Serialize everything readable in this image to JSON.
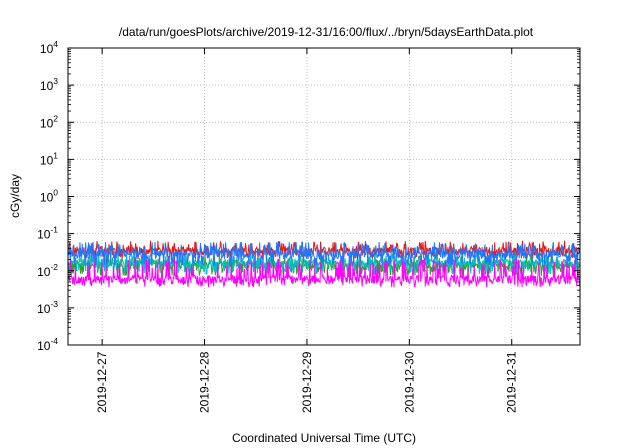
{
  "chart_data": {
    "type": "line",
    "title": "/data/run/goesPlots/archive/2019-12-31/16:00/flux/../bryn/5daysEarthData.plot",
    "xlabel": "Coordinated Universal Time (UTC)",
    "ylabel": "cGy/day",
    "yscale": "log",
    "ylim": [
      0.0001,
      10000
    ],
    "y_ticks": [
      {
        "base": "10",
        "exp": "-4",
        "value": 0.0001
      },
      {
        "base": "10",
        "exp": "-3",
        "value": 0.001
      },
      {
        "base": "10",
        "exp": "-2",
        "value": 0.01
      },
      {
        "base": "10",
        "exp": "-1",
        "value": 0.1
      },
      {
        "base": "10",
        "exp": "0",
        "value": 1
      },
      {
        "base": "10",
        "exp": "1",
        "value": 10
      },
      {
        "base": "10",
        "exp": "2",
        "value": 100
      },
      {
        "base": "10",
        "exp": "3",
        "value": 1000
      },
      {
        "base": "10",
        "exp": "4",
        "value": 10000
      }
    ],
    "xlim": [
      "2019-12-26 16:00",
      "2019-12-31 16:00"
    ],
    "x_ticks": [
      "2019-12-27",
      "2019-12-28",
      "2019-12-29",
      "2019-12-30",
      "2019-12-31"
    ],
    "grid": true,
    "series": [
      {
        "color": "#e41a1c",
        "level": 0.035,
        "min": 0.022,
        "max": 0.065
      },
      {
        "color": "#1f77ff",
        "level": 0.028,
        "min": 0.015,
        "max": 0.06
      },
      {
        "color": "#2ca02c",
        "level": 0.014,
        "min": 0.008,
        "max": 0.025
      },
      {
        "color": "#00c0c0",
        "level": 0.016,
        "min": 0.009,
        "max": 0.028
      },
      {
        "color": "#ff00ff",
        "level": 0.006,
        "min": 0.004,
        "max": 0.02
      }
    ]
  }
}
